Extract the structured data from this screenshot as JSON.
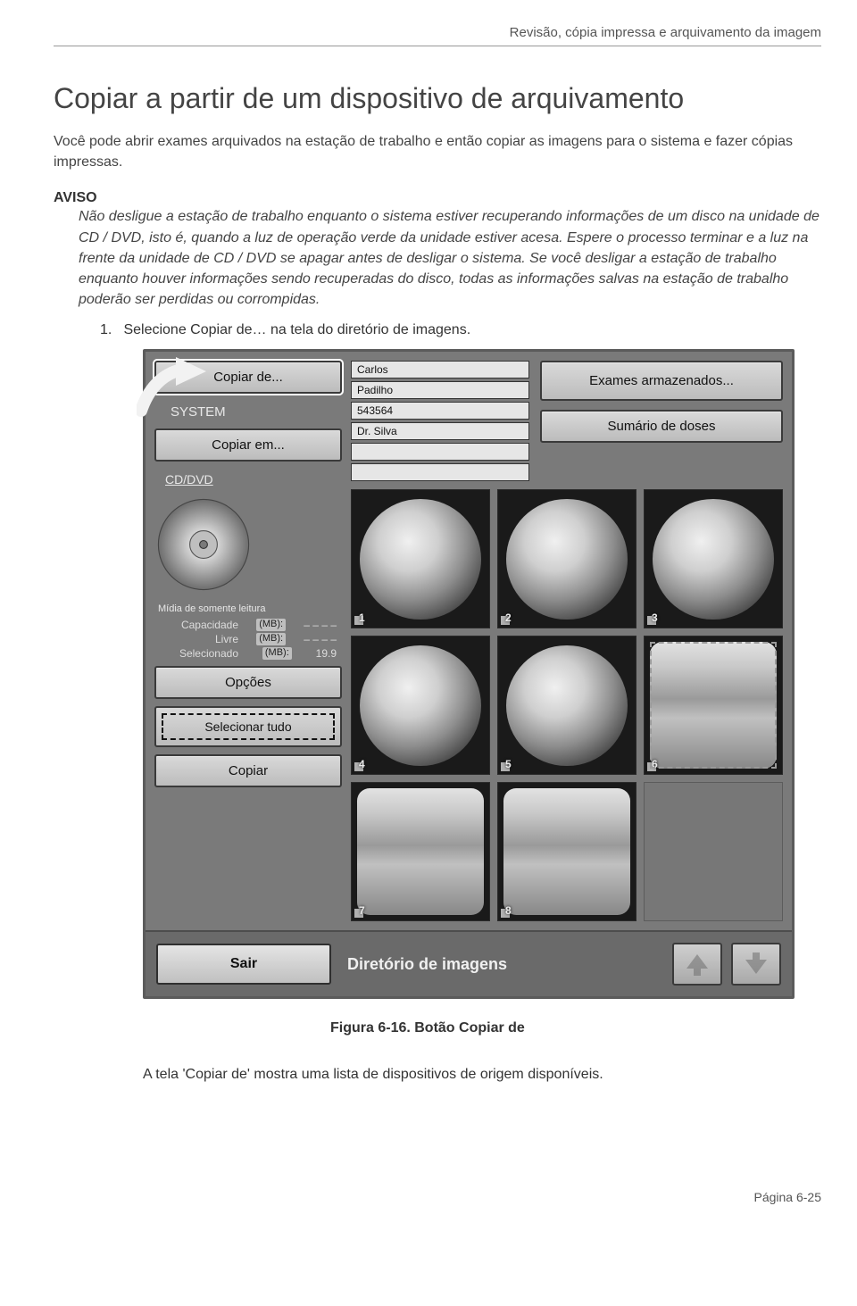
{
  "doc": {
    "header": "Revisão, cópia impressa e arquivamento da imagem",
    "title": "Copiar a partir de um dispositivo de arquivamento",
    "intro": "Você pode abrir exames arquivados na estação de trabalho e então copiar as imagens para o sistema e fazer cópias impressas.",
    "aviso_label": "AVISO",
    "aviso_body": "Não desligue a estação de trabalho enquanto o sistema estiver recuperando informações de um disco na unidade de CD / DVD, isto é, quando a luz de operação verde da unidade estiver acesa. Espere o processo terminar e a luz na frente da unidade de CD / DVD se apagar antes de desligar o sistema. Se você desligar a estação de trabalho enquanto houver informações sendo recuperadas do disco, todas as informações salvas na estação de trabalho poderão ser perdidas ou corrompidas.",
    "step_num": "1.",
    "step_text": "Selecione Copiar de… na tela do diretório de imagens.",
    "caption": "Figura 6-16. Botão Copiar de",
    "after": "A tela 'Copiar de' mostra uma lista de dispositivos de origem disponíveis.",
    "footer": "Página 6-25"
  },
  "app": {
    "sidebar": {
      "copy_from": "Copiar de...",
      "system": "SYSTEM",
      "copy_to": "Copiar em...",
      "cd_label": "CD/DVD",
      "media_note": "Mídia de somente leitura",
      "stats": [
        {
          "label": "Capacidade",
          "unit": "(MB):",
          "value": "– – – –"
        },
        {
          "label": "Livre",
          "unit": "(MB):",
          "value": "– – – –"
        },
        {
          "label": "Selecionado",
          "unit": "(MB):",
          "value": "19.9"
        }
      ],
      "options": "Opções",
      "select_all": "Selecionar tudo",
      "copy": "Copiar"
    },
    "fields": [
      "Carlos",
      "Padilho",
      "543564",
      "Dr. Silva",
      "",
      ""
    ],
    "right_buttons": {
      "stored": "Exames armazenados...",
      "dose": "Sumário de doses"
    },
    "thumbs": [
      {
        "n": "1",
        "type": "round",
        "selected": false
      },
      {
        "n": "2",
        "type": "round",
        "selected": false
      },
      {
        "n": "3",
        "type": "round",
        "selected": false
      },
      {
        "n": "4",
        "type": "round",
        "selected": false
      },
      {
        "n": "5",
        "type": "round",
        "selected": false
      },
      {
        "n": "6",
        "type": "spine",
        "selected": true
      },
      {
        "n": "7",
        "type": "spine",
        "selected": false
      },
      {
        "n": "8",
        "type": "spine",
        "selected": false
      },
      {
        "n": "",
        "type": "empty",
        "selected": false
      }
    ],
    "bottom": {
      "exit": "Sair",
      "title": "Diretório de imagens"
    },
    "colors": {
      "app_bg": "#7a7a7a",
      "button_face": "#cfcfcf",
      "button_text": "#111111",
      "label_light": "#e8e8e8"
    }
  }
}
